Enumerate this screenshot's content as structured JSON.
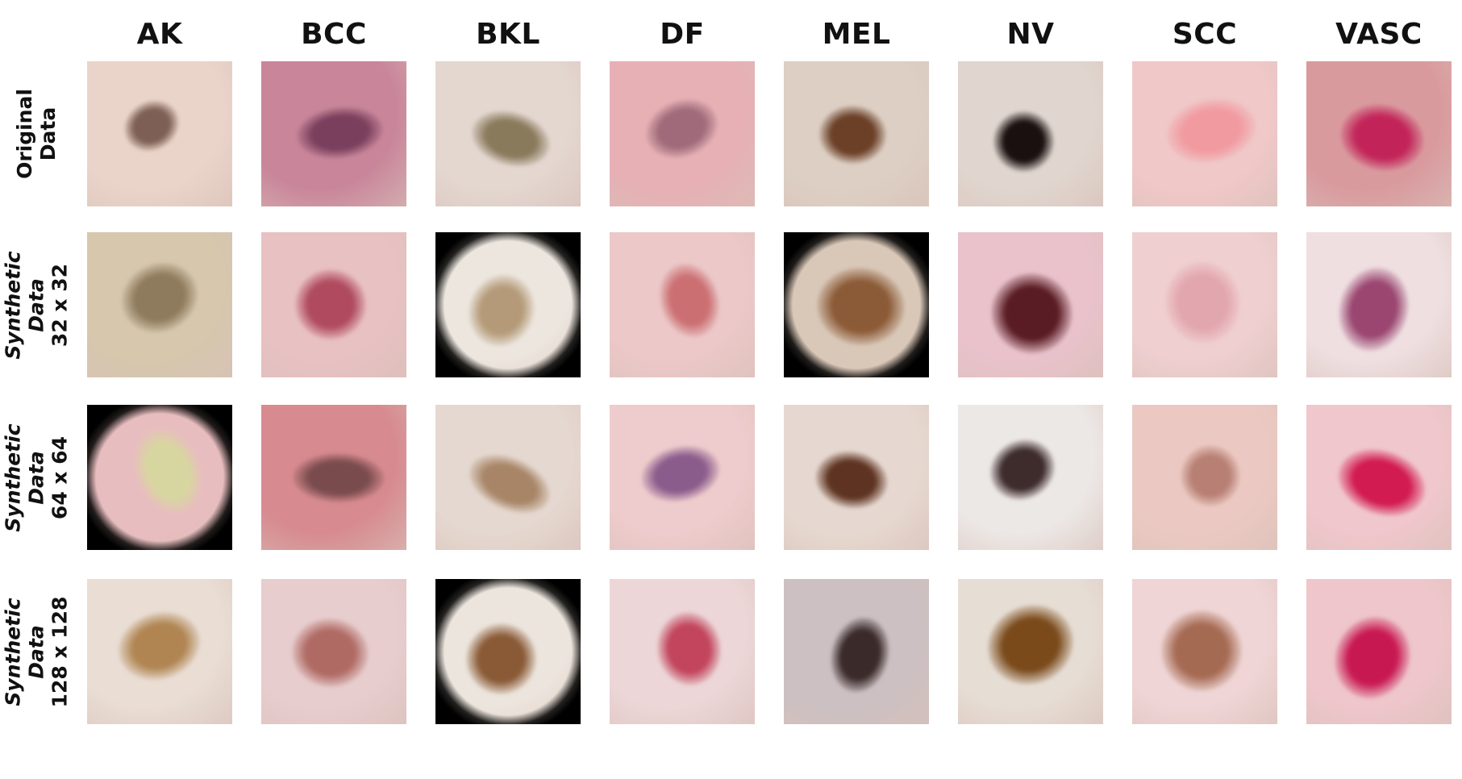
{
  "columns": [
    "AK",
    "BCC",
    "BKL",
    "DF",
    "MEL",
    "NV",
    "SCC",
    "VASC"
  ],
  "rows": [
    {
      "label_lines": [
        {
          "text": "Original",
          "italic": false
        },
        {
          "text": "Data",
          "italic": false
        }
      ]
    },
    {
      "label_lines": [
        {
          "text": "Synthetic",
          "italic": true
        },
        {
          "text": "Data",
          "italic": true
        },
        {
          "text": "32 x 32",
          "italic": false
        }
      ]
    },
    {
      "label_lines": [
        {
          "text": "Synthetic",
          "italic": true
        },
        {
          "text": "Data",
          "italic": true
        },
        {
          "text": "64 x 64",
          "italic": false
        }
      ]
    },
    {
      "label_lines": [
        {
          "text": "Synthetic",
          "italic": true
        },
        {
          "text": "Data",
          "italic": true
        },
        {
          "text": "128 x 128",
          "italic": false
        }
      ]
    }
  ],
  "tiles": [
    [
      {
        "skin": "#ead4c9",
        "lesion": "#7d5f55",
        "vignette": false
      },
      {
        "skin": "#c9869a",
        "lesion": "#7a3f5d",
        "vignette": false
      },
      {
        "skin": "#e3d7d0",
        "lesion": "#8a7a5c",
        "vignette": false
      },
      {
        "skin": "#e6b0b4",
        "lesion": "#a06a7a",
        "vignette": false
      },
      {
        "skin": "#ddcfc4",
        "lesion": "#6b4027",
        "vignette": false
      },
      {
        "skin": "#e0d6cf",
        "lesion": "#1a1010",
        "vignette": false
      },
      {
        "skin": "#f0c8c8",
        "lesion": "#f19aa0",
        "vignette": false
      },
      {
        "skin": "#d99a9e",
        "lesion": "#c2245a",
        "vignette": false
      }
    ],
    [
      {
        "skin": "#d6c7ad",
        "lesion": "#8e7a5c",
        "vignette": false
      },
      {
        "skin": "#e8c1c3",
        "lesion": "#b04a5f",
        "vignette": false
      },
      {
        "skin": "#ece6de",
        "lesion": "#b49a78",
        "vignette": true
      },
      {
        "skin": "#ecc8c8",
        "lesion": "#cc6f72",
        "vignette": false
      },
      {
        "skin": "#d9c8b8",
        "lesion": "#8b5a36",
        "vignette": true
      },
      {
        "skin": "#e9c2cb",
        "lesion": "#5a1c24",
        "vignette": false
      },
      {
        "skin": "#efcfd0",
        "lesion": "#e2a6ae",
        "vignette": false
      },
      {
        "skin": "#efdfe1",
        "lesion": "#9a4670",
        "vignette": false
      }
    ],
    [
      {
        "skin": "#e8bdbf",
        "lesion": "#d8d6a0",
        "vignette": true
      },
      {
        "skin": "#d78b90",
        "lesion": "#7a4b4d",
        "vignette": false
      },
      {
        "skin": "#e5d8d0",
        "lesion": "#a78566",
        "vignette": false
      },
      {
        "skin": "#eecbcc",
        "lesion": "#8a5c8c",
        "vignette": false
      },
      {
        "skin": "#e6d8d0",
        "lesion": "#5e3321",
        "vignette": false
      },
      {
        "skin": "#ece8e6",
        "lesion": "#3e2b2c",
        "vignette": false
      },
      {
        "skin": "#ebc9c2",
        "lesion": "#b88074",
        "vignette": false
      },
      {
        "skin": "#f0c7cc",
        "lesion": "#d21b50",
        "vignette": false
      }
    ],
    [
      {
        "skin": "#e9ddd4",
        "lesion": "#b08552",
        "vignette": false
      },
      {
        "skin": "#e7cdce",
        "lesion": "#b06a64",
        "vignette": false
      },
      {
        "skin": "#ece5dd",
        "lesion": "#8a5a36",
        "vignette": true
      },
      {
        "skin": "#ecd6d7",
        "lesion": "#c2455d",
        "vignette": false
      },
      {
        "skin": "#ccc0c2",
        "lesion": "#3a2a2a",
        "vignette": false
      },
      {
        "skin": "#e6ddd4",
        "lesion": "#7a4a1a",
        "vignette": false
      },
      {
        "skin": "#efd5d5",
        "lesion": "#a56a52",
        "vignette": false
      },
      {
        "skin": "#eec6cb",
        "lesion": "#c81852",
        "vignette": false
      }
    ]
  ]
}
